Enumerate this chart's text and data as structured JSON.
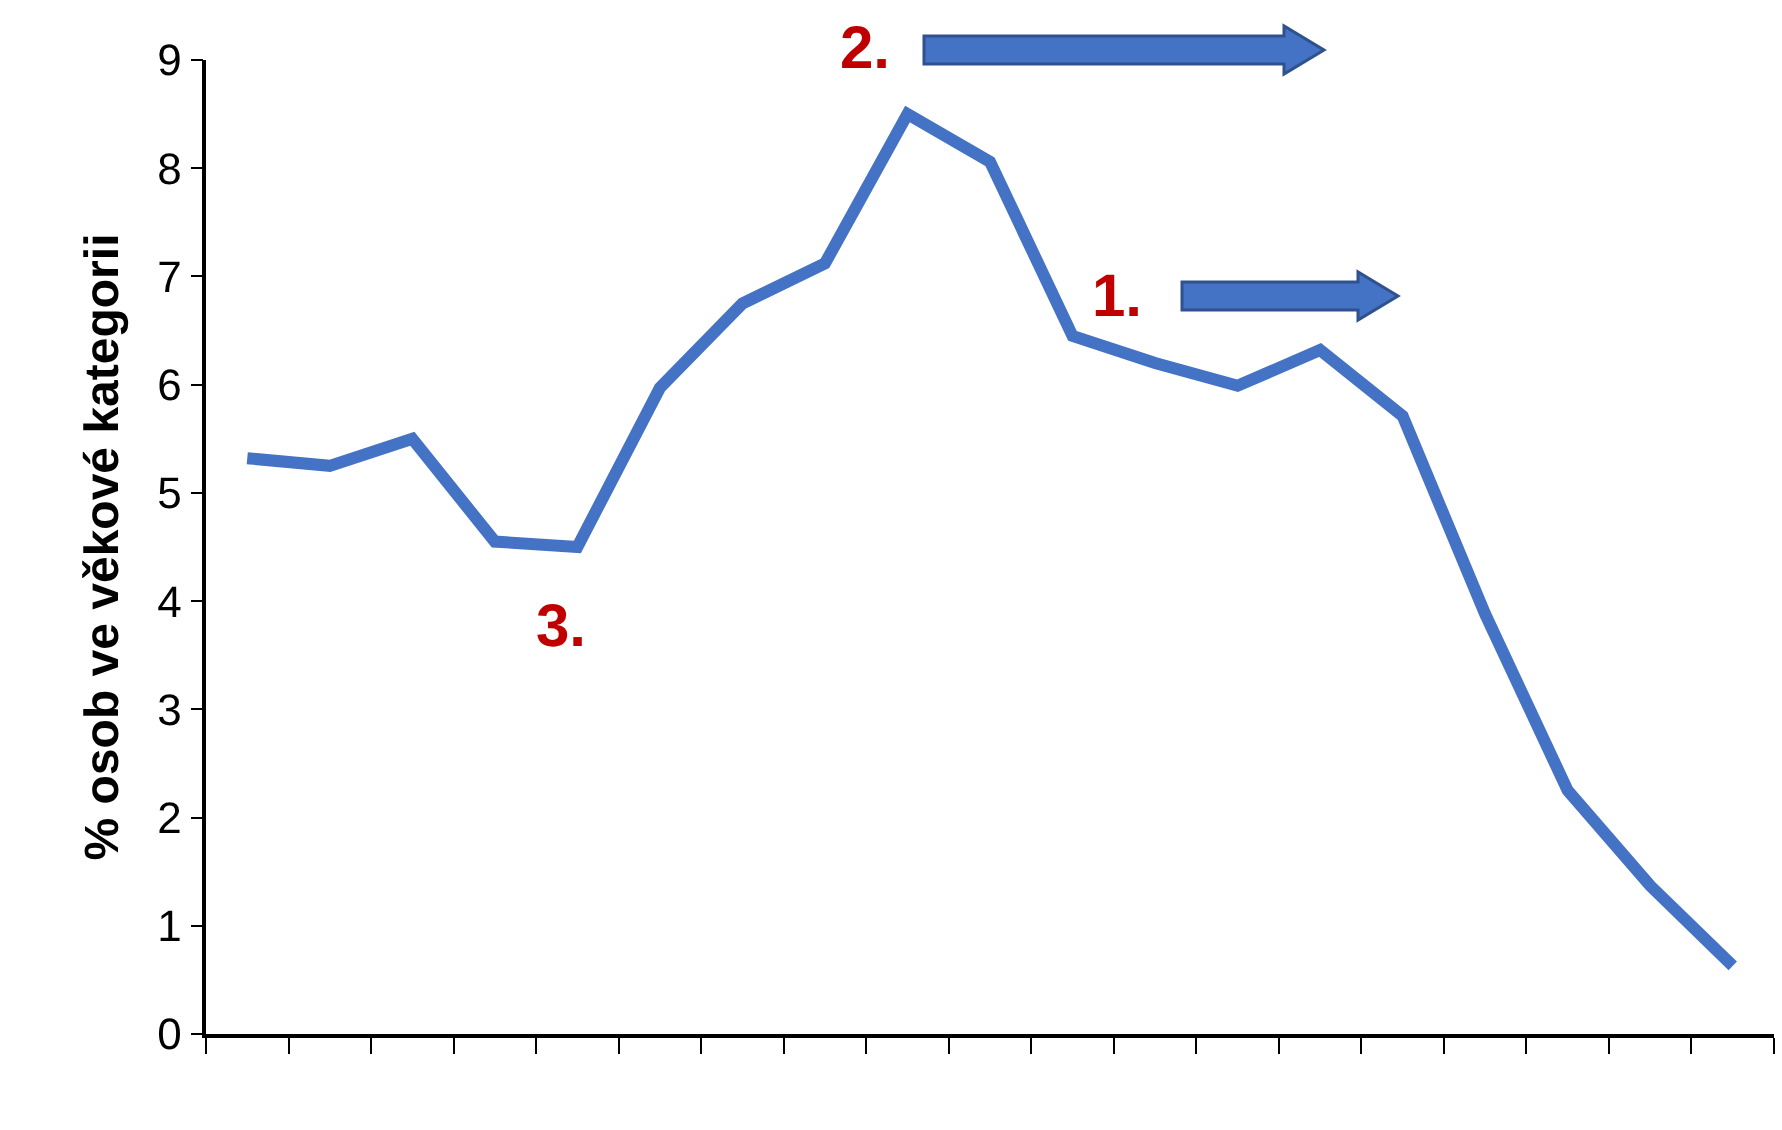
{
  "chart_data": {
    "type": "line",
    "ylabel": "% osob ve věkové kategorii",
    "categories": [
      null,
      null,
      null,
      null,
      null,
      null,
      null,
      null,
      null,
      null,
      null,
      null,
      null,
      null,
      null,
      null,
      null,
      null,
      null
    ],
    "series": [
      {
        "color": "#4472c4",
        "values": [
          5.32,
          5.25,
          5.5,
          4.55,
          4.5,
          5.97,
          6.75,
          7.12,
          8.5,
          8.06,
          6.45,
          6.2,
          5.99,
          6.32,
          5.71,
          3.88,
          2.25,
          1.37,
          0.63
        ]
      }
    ],
    "ylim": [
      0,
      9
    ],
    "yticks": [
      0,
      1,
      2,
      3,
      4,
      5,
      6,
      7,
      8,
      9
    ],
    "annotations": [
      "1.",
      "2.",
      "3."
    ],
    "tick_labels": "y",
    "marker": "none",
    "line_style": "solid"
  }
}
